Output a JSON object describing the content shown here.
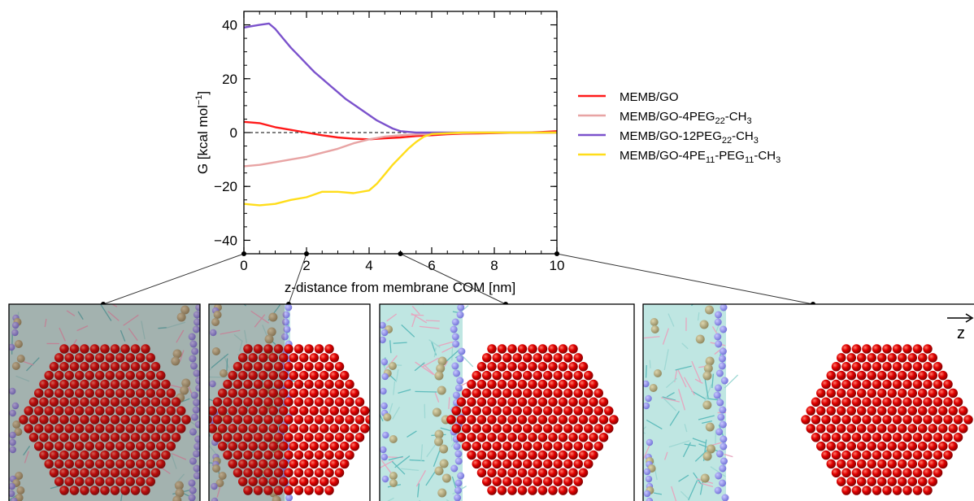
{
  "chart_data": {
    "type": "line",
    "xlabel": "z-distance from membrane COM [nm]",
    "ylabel_parts": [
      "G [kcal mol",
      "−1",
      "]"
    ],
    "xlim": [
      0,
      10
    ],
    "ylim": [
      -45,
      45
    ],
    "xticks": [
      0,
      2,
      4,
      6,
      8,
      10
    ],
    "yticks": [
      -40,
      -20,
      0,
      20,
      40
    ],
    "xtick_labels": [
      "0",
      "2",
      "4",
      "6",
      "8",
      "10"
    ],
    "ytick_labels": [
      "−40",
      "−20",
      "0",
      "20",
      "40"
    ],
    "reference_line": {
      "y": 0,
      "style": "dashed"
    },
    "legend_position": "right",
    "series": [
      {
        "name": "MEMB/GO",
        "legend_parts": [
          [
            "MEMB/GO",
            ""
          ]
        ],
        "color": "#ff1a1a",
        "x": [
          0,
          0.5,
          1,
          1.5,
          2,
          2.5,
          3,
          3.5,
          4,
          4.5,
          5,
          5.5,
          6,
          6.5,
          7,
          7.5,
          8,
          8.5,
          9,
          9.5,
          10
        ],
        "y": [
          4,
          3.5,
          2,
          1,
          0,
          -1,
          -1.8,
          -2.3,
          -2.5,
          -2.1,
          -1.8,
          -1.3,
          -1,
          -0.6,
          -0.4,
          -0.3,
          -0.2,
          -0.1,
          0,
          0.2,
          0.5
        ]
      },
      {
        "name": "MEMB/GO-4PEG22-CH3",
        "legend_parts": [
          [
            "MEMB/GO-4PEG",
            ""
          ],
          [
            "22",
            "sub"
          ],
          [
            "-CH",
            ""
          ],
          [
            "3",
            "sub"
          ]
        ],
        "color": "#e8a4a4",
        "x": [
          0,
          0.5,
          1,
          1.5,
          2,
          2.5,
          3,
          3.5,
          4,
          4.5,
          5,
          5.5,
          6,
          6.5,
          7,
          7.5,
          8,
          8.5,
          9,
          9.5,
          10
        ],
        "y": [
          -12.5,
          -12,
          -11,
          -10,
          -9,
          -7.5,
          -6,
          -4,
          -2.5,
          -1.5,
          -1,
          -0.7,
          -0.5,
          -0.3,
          -0.2,
          -0.1,
          0,
          0,
          0,
          0,
          0
        ]
      },
      {
        "name": "MEMB/GO-12PEG22-CH3",
        "legend_parts": [
          [
            "MEMB/GO-12PEG",
            ""
          ],
          [
            "22",
            "sub"
          ],
          [
            "-CH",
            ""
          ],
          [
            "3",
            "sub"
          ]
        ],
        "color": "#7b52cc",
        "x": [
          0,
          0.25,
          0.5,
          0.8,
          1,
          1.25,
          1.5,
          1.75,
          2,
          2.25,
          2.5,
          2.75,
          3,
          3.25,
          3.5,
          3.75,
          4,
          4.25,
          4.5,
          4.75,
          5,
          5.5,
          6,
          7,
          8,
          9,
          10
        ],
        "y": [
          39,
          39.5,
          40,
          40.5,
          38.5,
          35,
          31.5,
          28.5,
          25.5,
          22.5,
          20,
          17.5,
          15,
          12.5,
          10.5,
          8.5,
          6.5,
          4.5,
          3,
          1.5,
          0.5,
          0,
          0,
          0,
          0,
          0,
          0
        ]
      },
      {
        "name": "MEMB/GO-4PE11-PEG11-CH3",
        "legend_parts": [
          [
            "MEMB/GO-4PE",
            ""
          ],
          [
            "11",
            "sub"
          ],
          [
            "-PEG",
            ""
          ],
          [
            "11",
            "sub"
          ],
          [
            "-CH",
            ""
          ],
          [
            "3",
            "sub"
          ]
        ],
        "color": "#ffdd1a",
        "x": [
          0,
          0.5,
          1,
          1.5,
          2,
          2.5,
          3,
          3.5,
          4,
          4.25,
          4.5,
          4.75,
          5,
          5.25,
          5.5,
          5.75,
          6,
          7,
          8,
          9,
          10
        ],
        "y": [
          -26.5,
          -27,
          -26.5,
          -25,
          -24,
          -22,
          -22,
          -22.5,
          -21.5,
          -19,
          -15.5,
          -12,
          -9,
          -6,
          -3.5,
          -1.5,
          -0.5,
          0,
          0,
          0,
          0
        ]
      }
    ],
    "snapshot_markers": [
      {
        "x": 0,
        "panel": 0
      },
      {
        "x": 2,
        "panel": 1
      },
      {
        "x": 5,
        "panel": 2
      },
      {
        "x": 10,
        "panel": 3
      }
    ]
  },
  "snapshots": {
    "axis_label": "z",
    "panels": [
      {
        "go_sheet_inside_membrane": true,
        "sheet_hex_center": [
          0.61,
          0.57
        ]
      },
      {
        "go_sheet_inside_membrane": true,
        "sheet_hex_center": [
          0.61,
          0.57
        ]
      },
      {
        "go_sheet_inside_membrane": false,
        "sheet_hex_center": [
          0.61,
          0.57
        ]
      },
      {
        "go_sheet_inside_membrane": false,
        "sheet_hex_center": [
          0.61,
          0.57
        ]
      }
    ]
  },
  "colors": {
    "go_atom": "#e00000",
    "membrane_lipid": "#7fcfcf",
    "headgroup_blue": "#8c8ce6",
    "headgroup_tan": "#b3aa7e",
    "tail_pink": "#e6a6bf"
  }
}
